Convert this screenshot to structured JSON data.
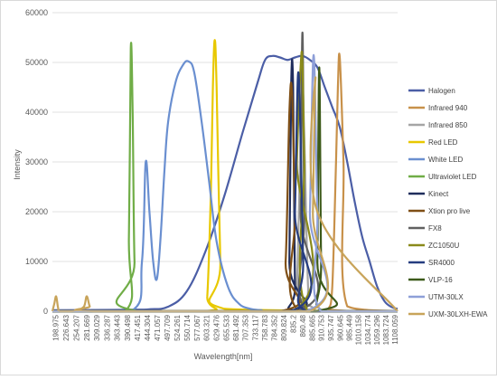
{
  "chart_data": {
    "type": "line",
    "xlabel": "Wavelength[nm]",
    "ylabel": "Intensity",
    "ylim": [
      0,
      60000
    ],
    "xlim": [
      190,
      1115
    ],
    "y_ticks": [
      "0",
      "10000",
      "20000",
      "30000",
      "40000",
      "50000",
      "60000"
    ],
    "y_tick_values": [
      0,
      10000,
      20000,
      30000,
      40000,
      50000,
      60000
    ],
    "x_tick_labels": [
      "198.975",
      "226.643",
      "254.207",
      "281.669",
      "309.029",
      "336.287",
      "363.443",
      "390.498",
      "417.451",
      "444.304",
      "471.057",
      "497.709",
      "524.261",
      "550.714",
      "577.067",
      "603.321",
      "629.476",
      "655.533",
      "681.492",
      "707.353",
      "733.117",
      "758.783",
      "784.352",
      "809.824",
      "835.2",
      "860.48",
      "885.665",
      "910.753",
      "935.747",
      "960.645",
      "985.449",
      "1010.158",
      "1034.774",
      "1059.296",
      "1083.724",
      "1108.059"
    ],
    "x_tick_values": [
      198.975,
      226.643,
      254.207,
      281.669,
      309.029,
      336.287,
      363.443,
      390.498,
      417.451,
      444.304,
      471.057,
      497.709,
      524.261,
      550.714,
      577.067,
      603.321,
      629.476,
      655.533,
      681.492,
      707.353,
      733.117,
      758.783,
      784.352,
      809.824,
      835.2,
      860.48,
      885.665,
      910.753,
      935.747,
      960.645,
      985.449,
      1010.158,
      1034.774,
      1059.296,
      1083.724,
      1108.059
    ],
    "grid": true,
    "legend_position": "right",
    "series": [
      {
        "name": "Halogen",
        "color": "#4b5ea6",
        "x": [
          190,
          300,
          400,
          450,
          500,
          550,
          600,
          650,
          700,
          740,
          760,
          780,
          800,
          820,
          840,
          860,
          880,
          900,
          920,
          940,
          960,
          980,
          1000,
          1020,
          1040,
          1060,
          1080,
          1100,
          1115
        ],
        "y": [
          200,
          250,
          300,
          400,
          900,
          4000,
          12000,
          23000,
          36000,
          46000,
          50500,
          51300,
          51000,
          50500,
          51000,
          51300,
          50500,
          49000,
          45000,
          41000,
          37000,
          30000,
          22000,
          15000,
          10000,
          5000,
          2000,
          800,
          500
        ]
      },
      {
        "name": "Infrared 940",
        "color": "#c8914a",
        "x": [
          190,
          920,
          930,
          940,
          950,
          955,
          960,
          970,
          980,
          1115
        ],
        "y": [
          0,
          0,
          500,
          5000,
          30000,
          45000,
          51000,
          30000,
          1000,
          0
        ]
      },
      {
        "name": "Infrared 850",
        "color": "#a5a5a5",
        "x": [
          190,
          835,
          845,
          855,
          860,
          865,
          875,
          885,
          1115
        ],
        "y": [
          0,
          0,
          5000,
          35000,
          45000,
          35000,
          5000,
          0,
          0
        ]
      },
      {
        "name": "Red LED",
        "color": "#e8c800",
        "x": [
          190,
          595,
          605,
          615,
          620,
          625,
          630,
          640,
          650,
          1115
        ],
        "y": [
          0,
          0,
          3000,
          25000,
          45000,
          54500,
          45000,
          10000,
          500,
          0
        ]
      },
      {
        "name": "White LED",
        "color": "#6a8fd0",
        "x": [
          190,
          400,
          430,
          440,
          450,
          460,
          470,
          480,
          490,
          500,
          520,
          540,
          555,
          570,
          590,
          610,
          630,
          660,
          690,
          720,
          750,
          780,
          1115
        ],
        "y": [
          0,
          0,
          10000,
          30000,
          20000,
          10000,
          6500,
          15000,
          28000,
          38000,
          46000,
          49500,
          50200,
          48000,
          38000,
          26000,
          14000,
          5000,
          1500,
          500,
          200,
          0,
          0
        ]
      },
      {
        "name": "Ultraviolet LED",
        "color": "#70ad47",
        "x": [
          190,
          385,
          395,
          400,
          405,
          410,
          420,
          1115
        ],
        "y": [
          0,
          0,
          15000,
          52800,
          40000,
          10000,
          0,
          0
        ]
      },
      {
        "name": "Kinect",
        "color": "#1f2d5c",
        "x": [
          190,
          820,
          825,
          830,
          835,
          840,
          845,
          1115
        ],
        "y": [
          0,
          0,
          10000,
          46000,
          45000,
          5000,
          0,
          0
        ]
      },
      {
        "name": "Xtion pro live",
        "color": "#7f4f16",
        "x": [
          190,
          800,
          815,
          825,
          832,
          840,
          850,
          1115
        ],
        "y": [
          0,
          0,
          10000,
          40000,
          44000,
          20000,
          0,
          0
        ]
      },
      {
        "name": "FX8",
        "color": "#606060",
        "x": [
          190,
          848,
          855,
          860,
          865,
          872,
          1115
        ],
        "y": [
          0,
          0,
          20000,
          56000,
          20000,
          0,
          0
        ]
      },
      {
        "name": "ZC1050U",
        "color": "#8a8a1a",
        "x": [
          190,
          835,
          845,
          855,
          860,
          865,
          875,
          1115
        ],
        "y": [
          0,
          0,
          30000,
          49000,
          50000,
          30000,
          0,
          0
        ]
      },
      {
        "name": "SR4000",
        "color": "#263d80",
        "x": [
          190,
          830,
          840,
          848,
          855,
          862,
          870,
          1115
        ],
        "y": [
          0,
          0,
          20000,
          47500,
          35000,
          10000,
          0,
          0
        ]
      },
      {
        "name": "VLP-16",
        "color": "#3d5a1a",
        "x": [
          190,
          895,
          900,
          905,
          910,
          915,
          1115
        ],
        "y": [
          0,
          0,
          10000,
          49000,
          10000,
          0,
          0
        ]
      },
      {
        "name": "UTM-30LX",
        "color": "#8e9fd8",
        "x": [
          190,
          870,
          880,
          890,
          900,
          910,
          1115
        ],
        "y": [
          0,
          0,
          20000,
          51500,
          20000,
          0,
          0
        ]
      },
      {
        "name": "UXM-30LXH-EWA",
        "color": "#c8a45a",
        "x": [
          190,
          195,
          200,
          205,
          210,
          240,
          260,
          275,
          282,
          290,
          300,
          880,
          888,
          895,
          900,
          1115
        ],
        "y": [
          0,
          1500,
          3000,
          800,
          0,
          0,
          300,
          1000,
          3000,
          1000,
          0,
          0,
          20000,
          47000,
          20000,
          0
        ]
      }
    ]
  }
}
